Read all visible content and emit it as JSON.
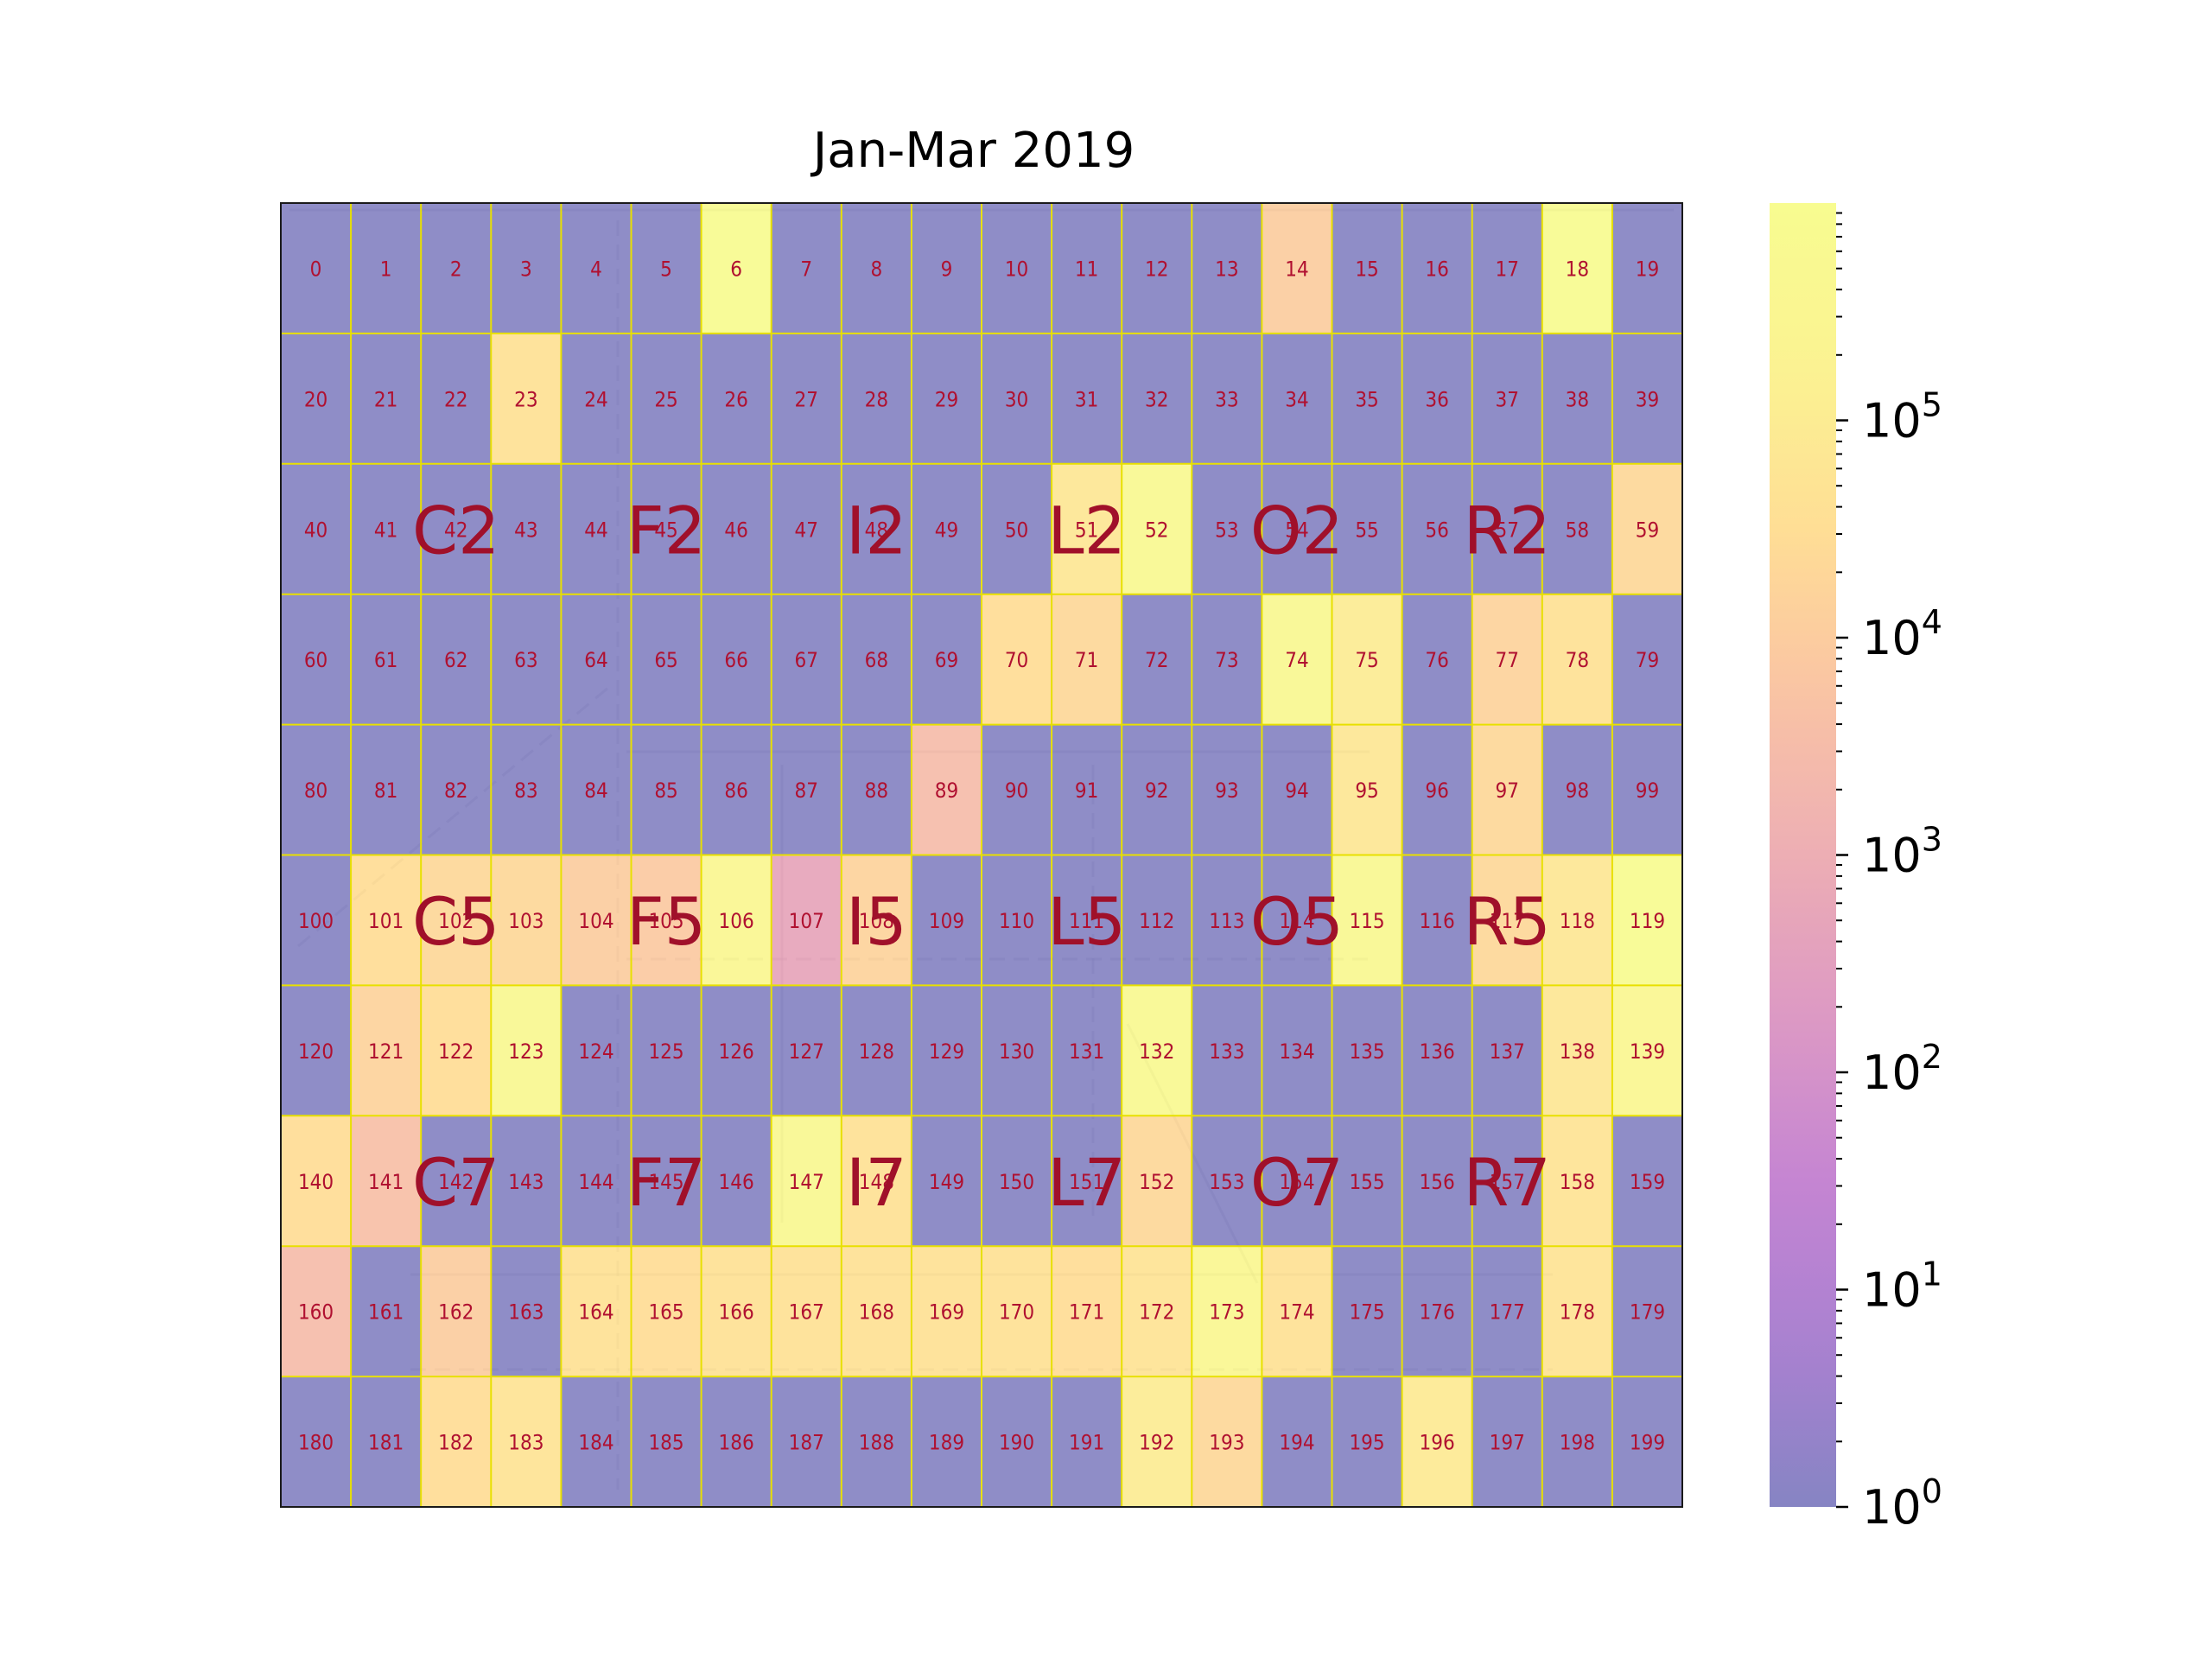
{
  "chart_data": {
    "type": "heatmap",
    "title": "Jan-Mar 2019",
    "grid": {
      "rows": 10,
      "cols": 20
    },
    "cell_labels": [
      "0",
      "1",
      "2",
      "3",
      "4",
      "5",
      "6",
      "7",
      "8",
      "9",
      "10",
      "11",
      "12",
      "13",
      "14",
      "15",
      "16",
      "17",
      "18",
      "19",
      "20",
      "21",
      "22",
      "23",
      "24",
      "25",
      "26",
      "27",
      "28",
      "29",
      "30",
      "31",
      "32",
      "33",
      "34",
      "35",
      "36",
      "37",
      "38",
      "39",
      "40",
      "41",
      "42",
      "43",
      "44",
      "45",
      "46",
      "47",
      "48",
      "49",
      "50",
      "51",
      "52",
      "53",
      "54",
      "55",
      "56",
      "57",
      "58",
      "59",
      "60",
      "61",
      "62",
      "63",
      "64",
      "65",
      "66",
      "67",
      "68",
      "69",
      "70",
      "71",
      "72",
      "73",
      "74",
      "75",
      "76",
      "77",
      "78",
      "79",
      "80",
      "81",
      "82",
      "83",
      "84",
      "85",
      "86",
      "87",
      "88",
      "89",
      "90",
      "91",
      "92",
      "93",
      "94",
      "95",
      "96",
      "97",
      "98",
      "99",
      "100",
      "101",
      "102",
      "103",
      "104",
      "105",
      "106",
      "107",
      "108",
      "109",
      "110",
      "111",
      "112",
      "113",
      "114",
      "115",
      "116",
      "117",
      "118",
      "119",
      "120",
      "121",
      "122",
      "123",
      "124",
      "125",
      "126",
      "127",
      "128",
      "129",
      "130",
      "131",
      "132",
      "133",
      "134",
      "135",
      "136",
      "137",
      "138",
      "139",
      "140",
      "141",
      "142",
      "143",
      "144",
      "145",
      "146",
      "147",
      "148",
      "149",
      "150",
      "151",
      "152",
      "153",
      "154",
      "155",
      "156",
      "157",
      "158",
      "159",
      "160",
      "161",
      "162",
      "163",
      "164",
      "165",
      "166",
      "167",
      "168",
      "169",
      "170",
      "171",
      "172",
      "173",
      "174",
      "175",
      "176",
      "177",
      "178",
      "179",
      "180",
      "181",
      "182",
      "183",
      "184",
      "185",
      "186",
      "187",
      "188",
      "189",
      "190",
      "191",
      "192",
      "193",
      "194",
      "195",
      "196",
      "197",
      "198",
      "199"
    ],
    "values": [
      [
        1,
        1,
        1,
        1,
        1,
        1,
        800000,
        1,
        1,
        1,
        1,
        1,
        1,
        1,
        10000,
        1,
        1,
        1,
        800000,
        1
      ],
      [
        1,
        1,
        1,
        40000,
        1,
        1,
        1,
        1,
        1,
        1,
        1,
        1,
        1,
        1,
        1,
        1,
        1,
        1,
        1,
        1
      ],
      [
        1,
        1,
        1,
        1,
        1,
        1,
        1,
        1,
        1,
        1,
        1,
        60000,
        600000,
        1,
        1,
        1,
        1,
        1,
        1,
        20000
      ],
      [
        1,
        1,
        1,
        1,
        1,
        1,
        1,
        1,
        1,
        1,
        30000,
        20000,
        1,
        1,
        500000,
        100000,
        1,
        15000,
        40000,
        1
      ],
      [
        1,
        1,
        1,
        1,
        1,
        1,
        1,
        1,
        1,
        3000,
        1,
        1,
        1,
        1,
        1,
        60000,
        1,
        20000,
        1,
        1
      ],
      [
        1,
        30000,
        20000,
        20000,
        10000,
        8000,
        300000,
        500,
        15000,
        1,
        1,
        1,
        1,
        1,
        1,
        400000,
        1,
        20000,
        60000,
        800000
      ],
      [
        1,
        15000,
        30000,
        400000,
        1,
        1,
        1,
        1,
        1,
        1,
        1,
        1,
        600000,
        1,
        1,
        1,
        1,
        1,
        60000,
        300000
      ],
      [
        30000,
        4000,
        1,
        1,
        1,
        1,
        1,
        500000,
        40000,
        1,
        1,
        1,
        20000,
        1,
        1,
        1,
        1,
        1,
        50000,
        1
      ],
      [
        3000,
        1,
        10000,
        1,
        40000,
        30000,
        40000,
        40000,
        40000,
        40000,
        40000,
        30000,
        50000,
        300000,
        40000,
        1,
        1,
        1,
        50000,
        1
      ],
      [
        1,
        1,
        30000,
        50000,
        1,
        1,
        1,
        1,
        1,
        1,
        1,
        1,
        100000,
        20000,
        1,
        1,
        80000,
        1,
        1,
        1
      ]
    ],
    "zone_labels": [
      {
        "text": "C2",
        "row": 2,
        "col": 2
      },
      {
        "text": "F2",
        "row": 2,
        "col": 5
      },
      {
        "text": "I2",
        "row": 2,
        "col": 8
      },
      {
        "text": "L2",
        "row": 2,
        "col": 11
      },
      {
        "text": "O2",
        "row": 2,
        "col": 14
      },
      {
        "text": "R2",
        "row": 2,
        "col": 17
      },
      {
        "text": "C5",
        "row": 5,
        "col": 2
      },
      {
        "text": "F5",
        "row": 5,
        "col": 5
      },
      {
        "text": "I5",
        "row": 5,
        "col": 8
      },
      {
        "text": "L5",
        "row": 5,
        "col": 11
      },
      {
        "text": "O5",
        "row": 5,
        "col": 14
      },
      {
        "text": "R5",
        "row": 5,
        "col": 17
      },
      {
        "text": "C7",
        "row": 7,
        "col": 2
      },
      {
        "text": "F7",
        "row": 7,
        "col": 5
      },
      {
        "text": "I7",
        "row": 7,
        "col": 8
      },
      {
        "text": "L7",
        "row": 7,
        "col": 11
      },
      {
        "text": "O7",
        "row": 7,
        "col": 14
      },
      {
        "text": "R7",
        "row": 7,
        "col": 17
      }
    ],
    "colorbar": {
      "scale": "log",
      "vmin": 1,
      "vmax": 1000000,
      "tick_labels": [
        {
          "base": "10",
          "exp": "0",
          "value": 1
        },
        {
          "base": "10",
          "exp": "1",
          "value": 10
        },
        {
          "base": "10",
          "exp": "2",
          "value": 100
        },
        {
          "base": "10",
          "exp": "3",
          "value": 1000
        },
        {
          "base": "10",
          "exp": "4",
          "value": 10000
        },
        {
          "base": "10",
          "exp": "5",
          "value": 100000
        }
      ],
      "colormap": "plasma",
      "alpha": 0.5
    },
    "background": "floor plan",
    "grid_lines": true,
    "grid_color": "#e8e000"
  }
}
